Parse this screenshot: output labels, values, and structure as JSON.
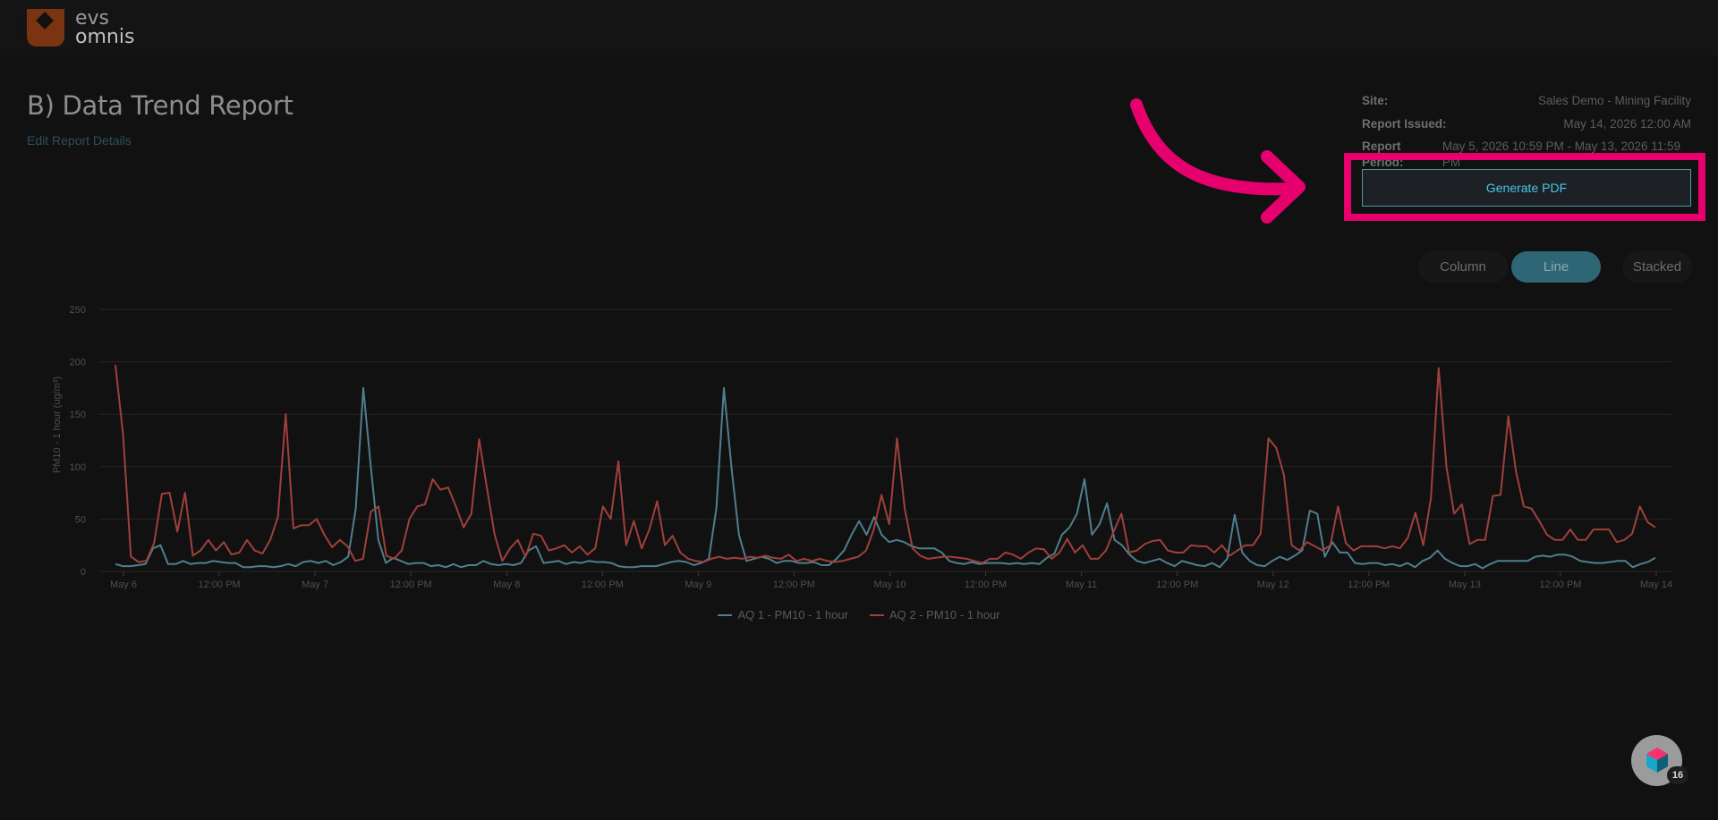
{
  "brand": {
    "line1": "evs",
    "line2": "omnis"
  },
  "report": {
    "title": "B) Data Trend Report",
    "edit_link": "Edit Report Details",
    "meta": [
      {
        "label": "Site:",
        "value": "Sales Demo - Mining Facility"
      },
      {
        "label": "Report Issued:",
        "value": "May 14, 2026 12:00 AM"
      },
      {
        "label": "Report Period:",
        "value": "May 5, 2026 10:59 PM - May 13, 2026 11:59 PM"
      }
    ],
    "generate_pdf": "Generate PDF"
  },
  "chart_toggle": {
    "options": [
      "Column",
      "Line",
      "Stacked"
    ],
    "selected": "Line"
  },
  "colors": {
    "accent": "#e6006e",
    "series_aq1": "#4f7f8e",
    "series_aq2": "#a0403c",
    "button_text": "#49c7e6",
    "brand_orange": "#b4521c"
  },
  "icons": {
    "logo": "evs-logo-icon",
    "help": "help-widget-icon",
    "arrow": "callout-arrow-icon"
  },
  "help_widget": {
    "badge": "16"
  },
  "chart_data": {
    "type": "line",
    "ylabel": "PM10 - 1 hour (ug/m³)",
    "xlabel": "",
    "ylim": [
      0,
      250
    ],
    "yticks": [
      0,
      50,
      100,
      150,
      200,
      250
    ],
    "xticks": [
      "May 6",
      "12:00 PM",
      "May 7",
      "12:00 PM",
      "May 8",
      "12:00 PM",
      "May 9",
      "12:00 PM",
      "May 10",
      "12:00 PM",
      "May 11",
      "12:00 PM",
      "May 12",
      "12:00 PM",
      "May 13",
      "12:00 PM",
      "May 14"
    ],
    "x_start": "May 5, 2026 11:00 PM",
    "x_step_hours": 1,
    "series": [
      {
        "name": "AQ 1 - PM10 - 1 hour",
        "values": [
          7,
          5,
          5,
          6,
          7,
          22,
          25,
          7,
          7,
          10,
          7,
          8,
          8,
          10,
          9,
          8,
          8,
          4,
          4,
          5,
          5,
          4,
          5,
          7,
          5,
          9,
          10,
          8,
          10,
          6,
          9,
          14,
          60,
          175,
          100,
          30,
          8,
          13,
          10,
          7,
          8,
          8,
          5,
          6,
          4,
          7,
          4,
          6,
          6,
          10,
          7,
          6,
          7,
          6,
          8,
          20,
          24,
          8,
          9,
          10,
          7,
          9,
          8,
          10,
          9,
          9,
          8,
          5,
          4,
          4,
          5,
          5,
          5,
          7,
          9,
          10,
          9,
          6,
          8,
          12,
          60,
          175,
          100,
          35,
          10,
          12,
          14,
          12,
          8,
          10,
          10,
          8,
          8,
          9,
          6,
          6,
          12,
          20,
          35,
          48,
          35,
          52,
          35,
          28,
          30,
          28,
          24,
          22,
          22,
          22,
          18,
          10,
          8,
          7,
          9,
          7,
          8,
          8,
          8,
          7,
          8,
          7,
          8,
          7,
          13,
          17,
          35,
          42,
          55,
          88,
          35,
          45,
          65,
          30,
          25,
          16,
          10,
          8,
          10,
          12,
          8,
          5,
          10,
          8,
          6,
          5,
          8,
          4,
          12,
          54,
          18,
          10,
          6,
          5,
          10,
          14,
          11,
          15,
          20,
          58,
          55,
          14,
          28,
          18,
          18,
          8,
          7,
          8,
          8,
          6,
          7,
          5,
          8,
          4,
          10,
          13,
          20,
          12,
          8,
          5,
          5,
          7,
          3,
          7,
          10,
          10,
          10,
          10,
          10,
          14,
          15,
          14,
          16,
          16,
          14,
          10,
          9,
          8,
          8,
          9,
          10,
          10,
          4,
          7,
          9,
          13
        ]
      },
      {
        "name": "AQ 2 - PM10 - 1 hour",
        "values": [
          197,
          130,
          14,
          9,
          10,
          27,
          74,
          75,
          38,
          75,
          15,
          20,
          30,
          20,
          28,
          16,
          18,
          30,
          20,
          17,
          30,
          52,
          150,
          41,
          44,
          44,
          50,
          35,
          23,
          30,
          24,
          10,
          12,
          57,
          62,
          15,
          12,
          20,
          50,
          62,
          64,
          88,
          78,
          80,
          62,
          42,
          55,
          126,
          80,
          35,
          10,
          22,
          30,
          14,
          36,
          34,
          20,
          22,
          25,
          18,
          24,
          16,
          22,
          62,
          50,
          105,
          25,
          48,
          22,
          40,
          67,
          25,
          34,
          18,
          12,
          10,
          9,
          12,
          14,
          12,
          13,
          12,
          14,
          13,
          15,
          13,
          12,
          16,
          10,
          12,
          10,
          12,
          10,
          9,
          10,
          12,
          14,
          20,
          40,
          73,
          45,
          127,
          60,
          22,
          15,
          12,
          13,
          14,
          14,
          13,
          12,
          10,
          8,
          12,
          12,
          18,
          16,
          12,
          18,
          22,
          21,
          12,
          18,
          31,
          18,
          25,
          12,
          12,
          20,
          38,
          55,
          18,
          20,
          26,
          29,
          30,
          20,
          18,
          18,
          25,
          24,
          24,
          18,
          25,
          15,
          20,
          25,
          25,
          36,
          127,
          118,
          92,
          25,
          20,
          28,
          24,
          20,
          25,
          62,
          27,
          20,
          24,
          24,
          24,
          22,
          24,
          22,
          32,
          56,
          25,
          70,
          194,
          100,
          55,
          64,
          26,
          30,
          30,
          72,
          73,
          148,
          95,
          62,
          60,
          48,
          35,
          30,
          30,
          40,
          30,
          30,
          40,
          40,
          40,
          28,
          30,
          36,
          62,
          47,
          42
        ]
      }
    ],
    "legend_position": "bottom-center",
    "grid": true
  }
}
